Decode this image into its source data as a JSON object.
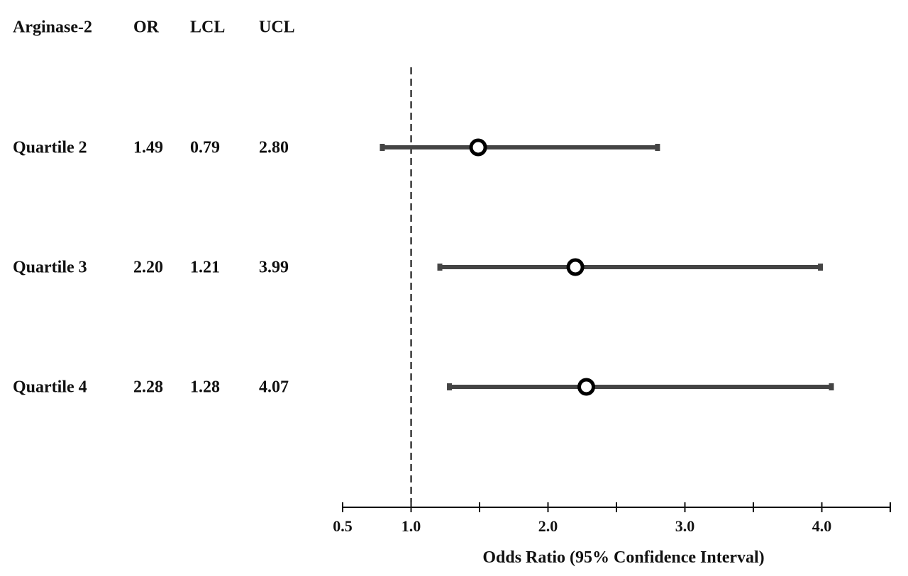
{
  "chart_data": {
    "type": "forest",
    "title": "",
    "xlabel": "Odds Ratio (95% Confidence Interval)",
    "ylabel": "",
    "xlim": [
      0.5,
      4.5
    ],
    "grid": false,
    "reference_line": 1.0,
    "table_headers": [
      "Arginase-2",
      "OR",
      "LCL",
      "UCL"
    ],
    "rows": [
      {
        "label": "Quartile 2",
        "or": 1.49,
        "lcl": 0.79,
        "ucl": 2.8,
        "or_text": "1.49",
        "lcl_text": "0.79",
        "ucl_text": "2.80"
      },
      {
        "label": "Quartile 3",
        "or": 2.2,
        "lcl": 1.21,
        "ucl": 3.99,
        "or_text": "2.20",
        "lcl_text": "1.21",
        "ucl_text": "3.99"
      },
      {
        "label": "Quartile 4",
        "or": 2.28,
        "lcl": 1.28,
        "ucl": 4.07,
        "or_text": "2.28",
        "lcl_text": "1.28",
        "ucl_text": "4.07"
      }
    ],
    "major_ticks": [
      0.5,
      1.0,
      2.0,
      3.0,
      4.0
    ],
    "tick_labels": [
      "0.5",
      "1.0",
      "2.0",
      "3.0",
      "4.0"
    ],
    "minor_ticks": [
      1.5,
      2.5,
      3.5,
      4.5
    ]
  },
  "colors": {
    "interval_line": "#444444",
    "marker_stroke": "#000000",
    "marker_fill": "#ffffff",
    "axis": "#111111",
    "text": "#111111"
  }
}
